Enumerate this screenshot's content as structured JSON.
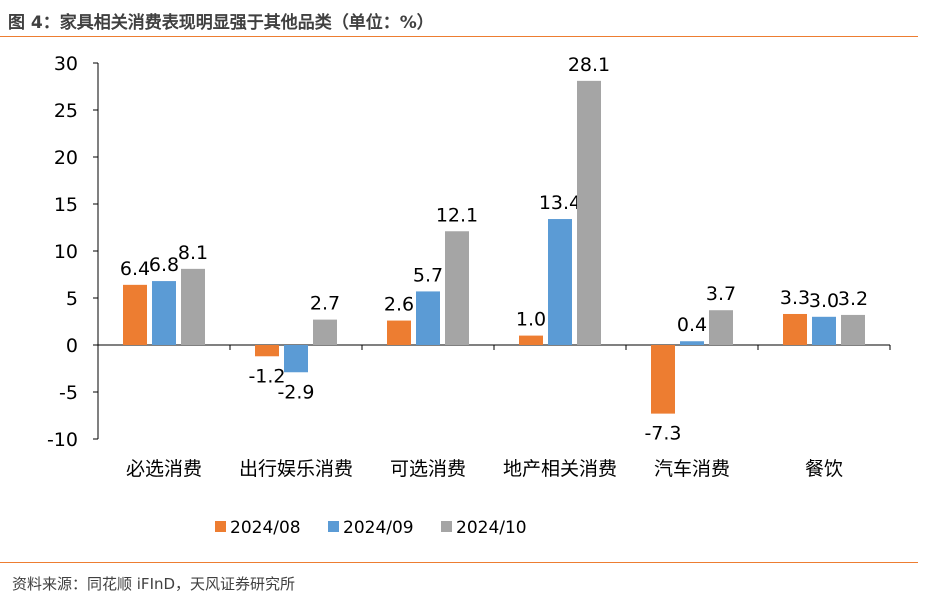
{
  "title": "图 4：家具相关消费表现明显强于其他品类（单位：%）",
  "source": "资料来源：同花顺 iFInD，天风证券研究所",
  "chart_data": {
    "type": "bar",
    "categories": [
      "必选消费",
      "出行娱乐消费",
      "可选消费",
      "地产相关消费",
      "汽车消费",
      "餐饮"
    ],
    "series": [
      {
        "name": "2024/08",
        "color": "#ED7D31",
        "values": [
          6.4,
          -1.2,
          2.6,
          1.0,
          -7.3,
          3.3
        ]
      },
      {
        "name": "2024/09",
        "color": "#5B9BD5",
        "values": [
          6.8,
          -2.9,
          5.7,
          13.4,
          0.4,
          3.0
        ]
      },
      {
        "name": "2024/10",
        "color": "#A5A5A5",
        "values": [
          8.1,
          2.7,
          12.1,
          28.1,
          3.7,
          3.2
        ]
      }
    ],
    "ylim": [
      -10,
      30
    ],
    "yticks": [
      -10,
      -5,
      0,
      5,
      10,
      15,
      20,
      25,
      30
    ],
    "grid": false,
    "legend": "bottom",
    "data_labels": true
  }
}
